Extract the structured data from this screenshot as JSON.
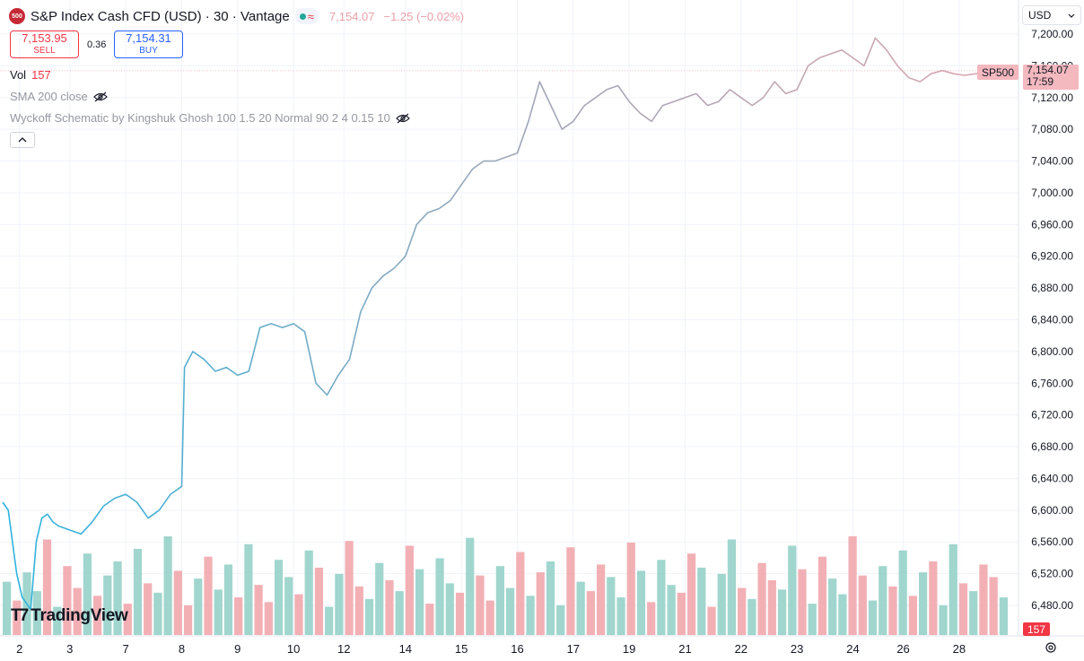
{
  "header": {
    "logo_text": "500",
    "title": "S&P Index Cash CFD (USD) · 30 · Vantage",
    "last_price": "7,154.07",
    "change": "−1.25 (−0.02%)"
  },
  "trade": {
    "sell_price": "7,153.95",
    "sell_label": "SELL",
    "spread": "0.36",
    "buy_price": "7,154.31",
    "buy_label": "BUY"
  },
  "legend": {
    "vol_label": "Vol",
    "vol_value": "157",
    "sma_label": "SMA 200 close",
    "wyckoff_label": "Wyckoff Schematic by Kingshuk Ghosh 100 1.5 20 Normal 90 2 4 0.15 10"
  },
  "currency": {
    "value": "USD"
  },
  "brand": {
    "name": "TradingView"
  },
  "price_scale": {
    "symbol_tag": "SP500",
    "last_price_tag": "7,154.07",
    "countdown": "17:59",
    "volume_tag": "157"
  },
  "colors": {
    "line_start": "#2bb3df",
    "line_mid": "#9ea7b8",
    "line_end": "#dda7ae",
    "volume_up": "#8fcfc6",
    "volume_down": "#f0a2a8",
    "grid": "#f0f3fa"
  },
  "icons": [
    "eye-off-icon",
    "chevron-up-icon",
    "chevron-down-icon",
    "settings-icon",
    "tradingview-logo-icon"
  ],
  "chart_data": {
    "type": "line",
    "title": "",
    "xlabel": "",
    "ylabel": "",
    "ylim": [
      6450,
      7215
    ],
    "y_ticks": [
      7200,
      7160,
      7120,
      7080,
      7040,
      7000,
      6960,
      6920,
      6880,
      6840,
      6800,
      6760,
      6720,
      6680,
      6640,
      6600,
      6560,
      6520,
      6480
    ],
    "y_tick_labels": [
      "7,200.00",
      "7,160.00",
      "7,120.00",
      "7,080.00",
      "7,040.00",
      "7,000.00",
      "6,960.00",
      "6,920.00",
      "6,880.00",
      "6,840.00",
      "6,800.00",
      "6,760.00",
      "6,720.00",
      "6,680.00",
      "6,640.00",
      "6,600.00",
      "6,560.00",
      "6,520.00",
      "6,480.00"
    ],
    "x_ticks": [
      "2",
      "3",
      "7",
      "8",
      "9",
      "10",
      "12",
      "14",
      "15",
      "16",
      "17",
      "19",
      "21",
      "22",
      "23",
      "24",
      "26",
      "28"
    ],
    "x_range": [
      0,
      18
    ],
    "x_tick_positions": [
      0.3,
      1.2,
      2.2,
      3.2,
      4.2,
      5.2,
      6.1,
      7.2,
      8.2,
      9.2,
      10.2,
      11.2,
      12.2,
      13.2,
      14.2,
      15.2,
      16.1,
      17.1
    ],
    "grid": true,
    "legend_position": "top-left",
    "series": [
      {
        "x": [
          0,
          0.1,
          0.25,
          0.35,
          0.5,
          0.6,
          0.7,
          0.8,
          0.9,
          1.0,
          1.2,
          1.4,
          1.6,
          1.8,
          2.0,
          2.2,
          2.4,
          2.6,
          2.8,
          3.0,
          3.2,
          3.25,
          3.4,
          3.6,
          3.8,
          4.0,
          4.2,
          4.4,
          4.6,
          4.8,
          5.0,
          5.2,
          5.4,
          5.6,
          5.8,
          6.0,
          6.1,
          6.2,
          6.4,
          6.6,
          6.8,
          7.0,
          7.2,
          7.4,
          7.6,
          7.8,
          8.0,
          8.2,
          8.4,
          8.6,
          8.8,
          9.0,
          9.2,
          9.4,
          9.6,
          9.8,
          10.0,
          10.2,
          10.4,
          10.6,
          10.8,
          11.0,
          11.2,
          11.4,
          11.6,
          11.8,
          12.0,
          12.2,
          12.4,
          12.6,
          12.8,
          13.0,
          13.2,
          13.4,
          13.6,
          13.8,
          14.0,
          14.2,
          14.4,
          14.6,
          14.8,
          15.0,
          15.2,
          15.4,
          15.6,
          15.8,
          16.0,
          16.2,
          16.4,
          16.6,
          16.8,
          17.0,
          17.2,
          17.4,
          17.6,
          17.8,
          18.0
        ],
        "values": [
          6610,
          6600,
          6520,
          6490,
          6475,
          6560,
          6590,
          6595,
          6585,
          6580,
          6575,
          6570,
          6585,
          6605,
          6615,
          6620,
          6610,
          6590,
          6600,
          6620,
          6630,
          6780,
          6800,
          6790,
          6775,
          6780,
          6770,
          6775,
          6830,
          6835,
          6830,
          6835,
          6825,
          6760,
          6745,
          6770,
          6780,
          6790,
          6850,
          6880,
          6895,
          6905,
          6920,
          6960,
          6975,
          6980,
          6990,
          7010,
          7030,
          7040,
          7040,
          7045,
          7050,
          7090,
          7140,
          7110,
          7080,
          7090,
          7110,
          7120,
          7130,
          7135,
          7115,
          7100,
          7090,
          7110,
          7115,
          7120,
          7125,
          7110,
          7115,
          7130,
          7120,
          7110,
          7120,
          7140,
          7125,
          7130,
          7160,
          7170,
          7175,
          7180,
          7170,
          7160,
          7195,
          7180,
          7160,
          7145,
          7140,
          7150,
          7154,
          7150,
          7148,
          7150,
          7152,
          7153,
          7154
        ]
      }
    ],
    "volume": [
      34,
      22,
      40,
      28,
      61,
      18,
      44,
      30,
      52,
      25,
      38,
      47,
      20,
      55,
      33,
      27,
      63,
      41,
      19,
      36,
      50,
      29,
      45,
      24,
      58,
      32,
      21,
      48,
      37,
      26,
      54,
      43,
      18,
      39,
      60,
      31,
      23,
      46,
      35,
      28,
      57,
      42,
      20,
      49,
      33,
      27,
      62,
      38,
      22,
      44,
      30,
      53,
      25,
      40,
      47,
      19,
      56,
      34,
      28,
      45,
      37,
      24,
      59,
      41,
      21,
      48,
      32,
      27,
      52,
      43,
      18,
      39,
      61,
      30,
      23,
      46,
      35,
      29,
      57,
      42,
      20,
      50,
      36,
      26,
      63,
      38,
      22,
      44,
      31,
      54,
      25,
      40,
      47,
      19,
      58,
      33,
      28,
      45,
      37,
      24
    ],
    "volume_up": [
      true,
      false,
      true,
      true,
      false,
      true,
      false,
      false,
      true,
      false,
      true,
      true,
      false,
      true,
      false,
      true,
      true,
      false,
      false,
      true,
      false,
      true,
      true,
      false,
      true,
      false,
      false,
      true,
      true,
      false,
      true,
      false,
      true,
      true,
      false,
      false,
      true,
      true,
      false,
      true,
      false,
      true,
      false,
      true,
      true,
      false,
      true,
      false,
      false,
      true,
      true,
      false,
      true,
      false,
      true,
      true,
      false,
      true,
      false,
      false,
      true,
      true,
      false,
      true,
      false,
      true,
      true,
      false,
      false,
      true,
      false,
      true,
      true,
      false,
      true,
      false,
      false,
      true,
      true,
      false,
      true,
      false,
      true,
      true,
      false,
      false,
      true,
      true,
      false,
      true,
      false,
      true,
      false,
      true,
      true,
      false,
      true,
      false,
      false,
      true
    ]
  }
}
